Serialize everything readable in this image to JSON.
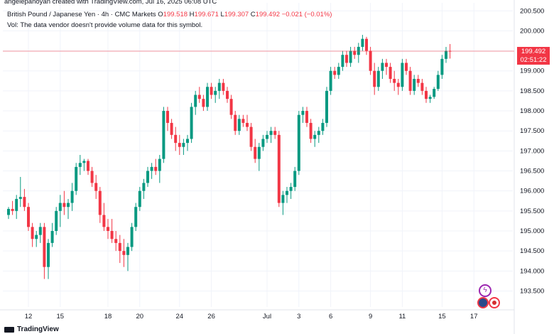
{
  "header": {
    "created_by": "angelepanoyan created with TradingView.com, Jul 16, 2025 06:08 UTC",
    "symbol": "British Pound / Japanese Yen · 4h · CMC Markets",
    "open_label": "O",
    "open": "199.518",
    "high_label": "H",
    "high": "199.671",
    "low_label": "L",
    "low": "199.307",
    "close_label": "C",
    "close": "199.492",
    "change": "−0.021 (−0.01%)",
    "vol_note": "Vol: The data vendor doesn't provide volume data for this symbol."
  },
  "badge": {
    "price": "199.492",
    "countdown": "02:51:22"
  },
  "branding": {
    "logo_text": "TradingView"
  },
  "colors": {
    "up": "#089981",
    "down": "#f23645",
    "price_line": "#f23645"
  },
  "icons": [
    "lightning-icon",
    "flag-gb-icon",
    "flag-jp-icon"
  ],
  "chart_data": {
    "type": "candlestick",
    "ylim": [
      193.1,
      200.7
    ],
    "y_ticks": [
      "200.500",
      "200.000",
      "199.500",
      "199.000",
      "198.500",
      "198.000",
      "197.500",
      "197.000",
      "196.500",
      "196.000",
      "195.500",
      "195.000",
      "194.500",
      "194.000",
      "193.500"
    ],
    "x_ticks": [
      {
        "label": "12",
        "index": 5
      },
      {
        "label": "15",
        "index": 13
      },
      {
        "label": "18",
        "index": 25
      },
      {
        "label": "20",
        "index": 33
      },
      {
        "label": "24",
        "index": 43
      },
      {
        "label": "26",
        "index": 51
      },
      {
        "label": "Jul",
        "index": 65
      },
      {
        "label": "3",
        "index": 73
      },
      {
        "label": "6",
        "index": 81
      },
      {
        "label": "9",
        "index": 91
      },
      {
        "label": "11",
        "index": 99
      },
      {
        "label": "15",
        "index": 109
      },
      {
        "label": "17",
        "index": 117
      }
    ],
    "last_price": 199.492,
    "ohlc": [
      [
        195.4,
        195.6,
        195.3,
        195.55
      ],
      [
        195.55,
        195.75,
        195.4,
        195.5
      ],
      [
        195.5,
        195.9,
        195.3,
        195.8
      ],
      [
        195.8,
        196.35,
        195.6,
        195.85
      ],
      [
        195.85,
        196.05,
        195.5,
        195.6
      ],
      [
        195.6,
        195.7,
        195.0,
        195.1
      ],
      [
        195.1,
        195.2,
        194.6,
        194.8
      ],
      [
        194.8,
        195.0,
        194.6,
        194.9
      ],
      [
        194.9,
        195.2,
        194.7,
        195.1
      ],
      [
        195.1,
        195.2,
        193.8,
        194.1
      ],
      [
        194.1,
        194.8,
        193.8,
        194.7
      ],
      [
        194.7,
        195.2,
        194.6,
        195.0
      ],
      [
        195.0,
        195.6,
        194.9,
        195.5
      ],
      [
        195.5,
        195.9,
        195.1,
        195.7
      ],
      [
        195.7,
        196.0,
        195.4,
        195.6
      ],
      [
        195.6,
        195.8,
        195.3,
        195.7
      ],
      [
        195.7,
        196.2,
        195.5,
        196.0
      ],
      [
        196.0,
        196.7,
        195.9,
        196.6
      ],
      [
        196.6,
        196.9,
        196.4,
        196.7
      ],
      [
        196.7,
        196.8,
        196.5,
        196.75
      ],
      [
        196.75,
        196.8,
        196.4,
        196.5
      ],
      [
        196.5,
        196.6,
        196.1,
        196.2
      ],
      [
        196.2,
        196.4,
        195.8,
        196.0
      ],
      [
        196.0,
        196.1,
        195.2,
        195.4
      ],
      [
        195.4,
        195.7,
        195.0,
        195.1
      ],
      [
        195.1,
        195.3,
        194.8,
        195.0
      ],
      [
        195.0,
        195.3,
        194.7,
        194.8
      ],
      [
        194.8,
        195.0,
        194.5,
        194.7
      ],
      [
        194.7,
        194.9,
        194.2,
        194.5
      ],
      [
        194.5,
        194.8,
        194.1,
        194.4
      ],
      [
        194.4,
        194.7,
        194.0,
        194.6
      ],
      [
        194.6,
        195.2,
        194.5,
        195.1
      ],
      [
        195.1,
        195.7,
        195.0,
        195.6
      ],
      [
        195.6,
        196.1,
        195.5,
        196.0
      ],
      [
        196.0,
        196.3,
        195.8,
        196.2
      ],
      [
        196.2,
        196.6,
        196.1,
        196.5
      ],
      [
        196.5,
        196.7,
        196.3,
        196.6
      ],
      [
        196.6,
        196.8,
        196.4,
        196.5
      ],
      [
        196.5,
        196.9,
        196.2,
        196.8
      ],
      [
        196.8,
        198.1,
        196.7,
        198.0
      ],
      [
        198.0,
        198.1,
        197.5,
        197.7
      ],
      [
        197.7,
        197.8,
        197.3,
        197.4
      ],
      [
        197.4,
        197.6,
        197.0,
        197.2
      ],
      [
        197.2,
        197.4,
        196.9,
        197.1
      ],
      [
        197.1,
        197.3,
        196.9,
        197.2
      ],
      [
        197.2,
        197.4,
        197.0,
        197.3
      ],
      [
        197.3,
        198.2,
        197.2,
        198.1
      ],
      [
        198.1,
        198.5,
        197.9,
        198.4
      ],
      [
        198.4,
        198.6,
        198.2,
        198.3
      ],
      [
        198.3,
        198.4,
        198.0,
        198.1
      ],
      [
        198.1,
        198.7,
        198.0,
        198.6
      ],
      [
        198.6,
        198.7,
        198.3,
        198.4
      ],
      [
        198.4,
        198.6,
        198.2,
        198.5
      ],
      [
        198.5,
        198.8,
        198.3,
        198.7
      ],
      [
        198.7,
        198.8,
        198.4,
        198.5
      ],
      [
        198.5,
        198.6,
        198.2,
        198.3
      ],
      [
        198.3,
        198.4,
        197.8,
        197.9
      ],
      [
        197.9,
        198.0,
        197.4,
        197.5
      ],
      [
        197.5,
        197.9,
        197.4,
        197.8
      ],
      [
        197.8,
        197.9,
        197.6,
        197.7
      ],
      [
        197.7,
        197.9,
        197.5,
        197.6
      ],
      [
        197.6,
        197.7,
        197.0,
        197.1
      ],
      [
        197.1,
        197.3,
        196.7,
        196.8
      ],
      [
        196.8,
        197.2,
        196.5,
        197.1
      ],
      [
        197.1,
        197.4,
        197.0,
        197.3
      ],
      [
        197.3,
        197.5,
        197.2,
        197.4
      ],
      [
        197.4,
        197.6,
        197.2,
        197.5
      ],
      [
        197.5,
        197.6,
        197.3,
        197.4
      ],
      [
        197.4,
        197.5,
        195.6,
        195.7
      ],
      [
        195.7,
        196.0,
        195.4,
        195.9
      ],
      [
        195.9,
        196.1,
        195.7,
        196.0
      ],
      [
        196.0,
        196.2,
        195.8,
        196.1
      ],
      [
        196.1,
        196.6,
        196.0,
        196.5
      ],
      [
        196.5,
        198.0,
        196.4,
        197.9
      ],
      [
        197.9,
        198.1,
        197.7,
        198.0
      ],
      [
        198.0,
        198.1,
        197.6,
        197.7
      ],
      [
        197.7,
        197.8,
        197.2,
        197.3
      ],
      [
        197.3,
        197.5,
        197.1,
        197.4
      ],
      [
        197.4,
        197.6,
        197.2,
        197.5
      ],
      [
        197.5,
        197.8,
        197.4,
        197.7
      ],
      [
        197.7,
        198.6,
        197.6,
        198.5
      ],
      [
        198.5,
        199.1,
        198.4,
        199.0
      ],
      [
        199.0,
        199.1,
        198.8,
        198.9
      ],
      [
        198.9,
        199.2,
        198.8,
        199.1
      ],
      [
        199.1,
        199.5,
        199.0,
        199.4
      ],
      [
        199.4,
        199.5,
        199.1,
        199.2
      ],
      [
        199.2,
        199.6,
        199.1,
        199.5
      ],
      [
        199.5,
        199.6,
        199.3,
        199.4
      ],
      [
        199.4,
        199.7,
        199.2,
        199.6
      ],
      [
        199.6,
        199.9,
        199.5,
        199.8
      ],
      [
        199.8,
        199.85,
        199.4,
        199.5
      ],
      [
        199.5,
        199.6,
        198.9,
        199.0
      ],
      [
        199.0,
        199.2,
        198.4,
        198.6
      ],
      [
        198.6,
        199.1,
        198.5,
        199.0
      ],
      [
        199.0,
        199.3,
        198.8,
        199.2
      ],
      [
        199.2,
        199.3,
        198.9,
        199.1
      ],
      [
        199.1,
        199.2,
        198.7,
        198.8
      ],
      [
        198.8,
        199.0,
        198.5,
        198.7
      ],
      [
        198.7,
        198.8,
        198.4,
        198.6
      ],
      [
        198.6,
        199.3,
        198.5,
        199.2
      ],
      [
        199.2,
        199.3,
        198.9,
        199.0
      ],
      [
        199.0,
        199.1,
        198.4,
        198.5
      ],
      [
        198.5,
        198.9,
        198.4,
        198.8
      ],
      [
        198.8,
        198.9,
        198.6,
        198.7
      ],
      [
        198.7,
        198.8,
        198.4,
        198.5
      ],
      [
        198.5,
        198.6,
        198.2,
        198.3
      ],
      [
        198.3,
        198.4,
        198.2,
        198.35
      ],
      [
        198.35,
        198.6,
        198.3,
        198.55
      ],
      [
        198.55,
        199.0,
        198.5,
        198.9
      ],
      [
        198.9,
        199.4,
        198.8,
        199.3
      ],
      [
        199.3,
        199.6,
        199.2,
        199.5
      ],
      [
        199.5,
        199.671,
        199.307,
        199.492
      ]
    ]
  }
}
